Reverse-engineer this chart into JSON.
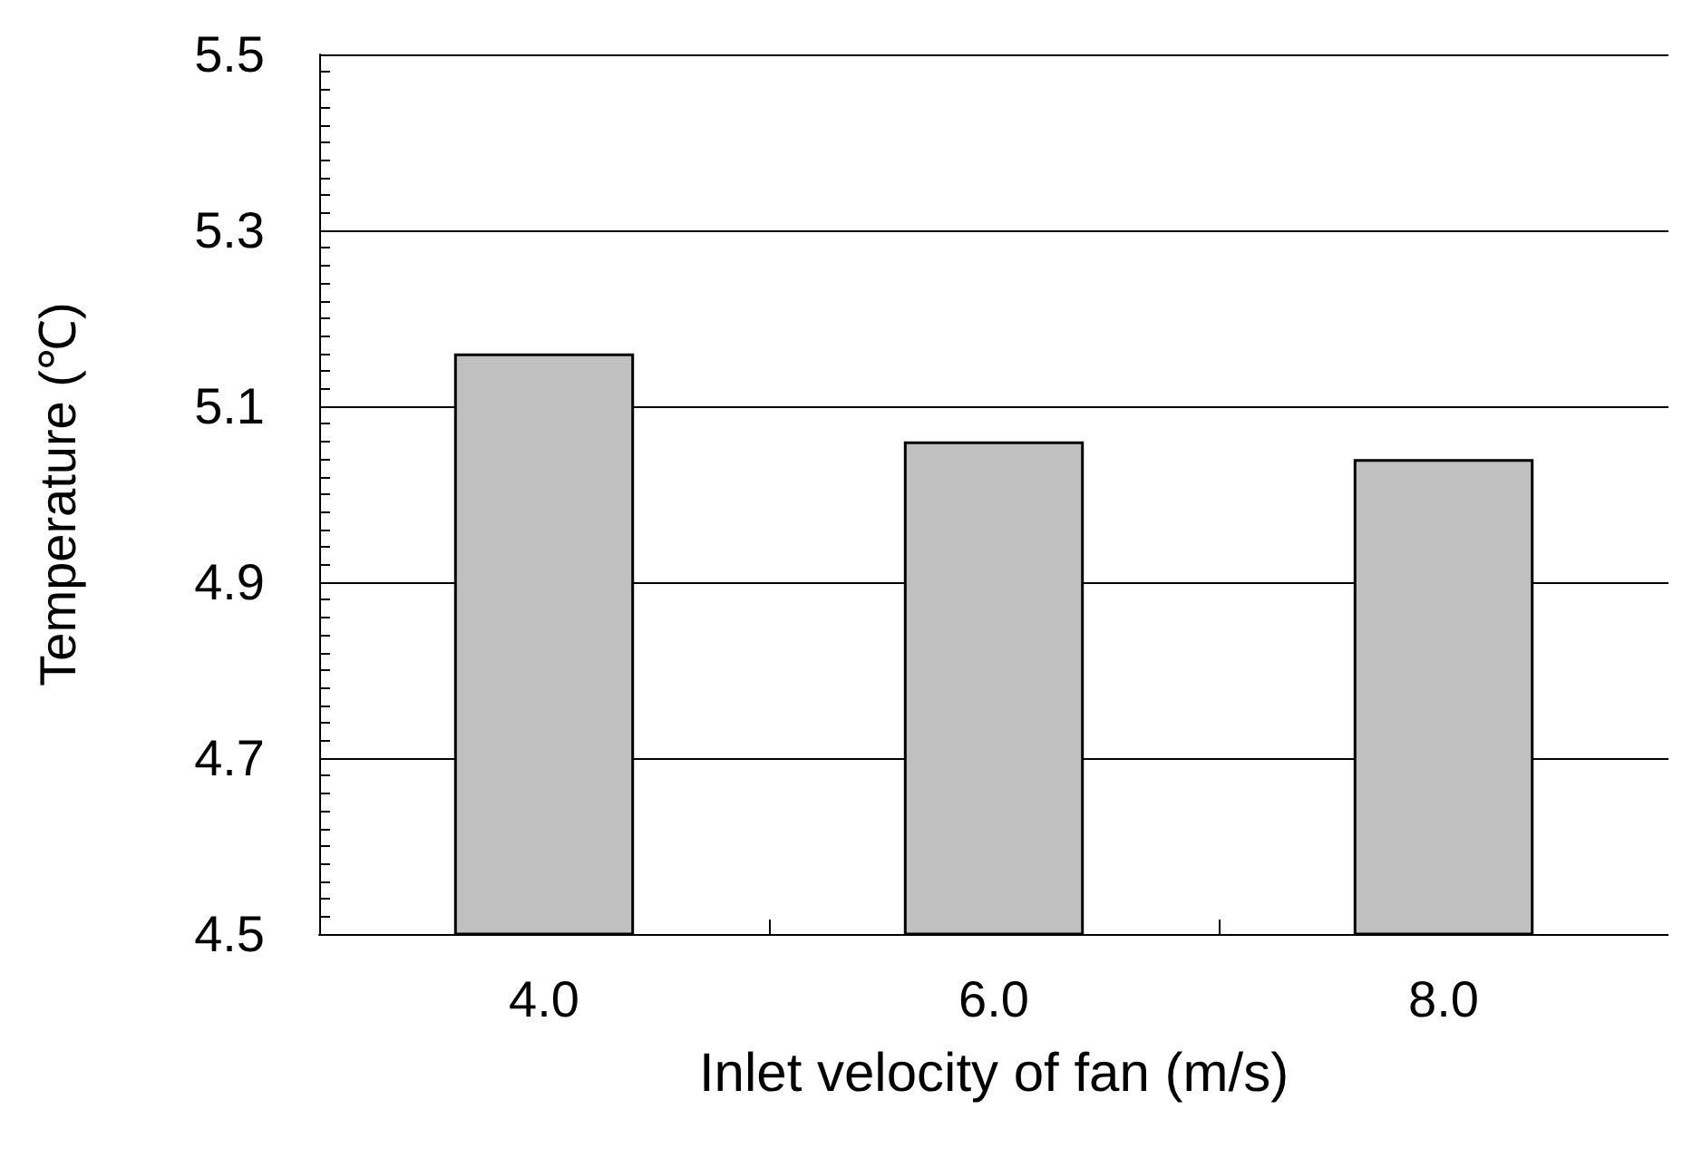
{
  "chart_data": {
    "type": "bar",
    "xlabel": "Inlet velocity of fan (m/s)",
    "ylabel": "Temperature (℃)",
    "categories": [
      "4.0",
      "6.0",
      "8.0"
    ],
    "values": [
      5.16,
      5.06,
      5.04
    ],
    "color": "#c0c0c0",
    "ylim": [
      4.5,
      5.5
    ],
    "yticks": [
      4.5,
      4.7,
      4.9,
      5.1,
      5.3,
      5.5
    ],
    "grid": "y"
  }
}
